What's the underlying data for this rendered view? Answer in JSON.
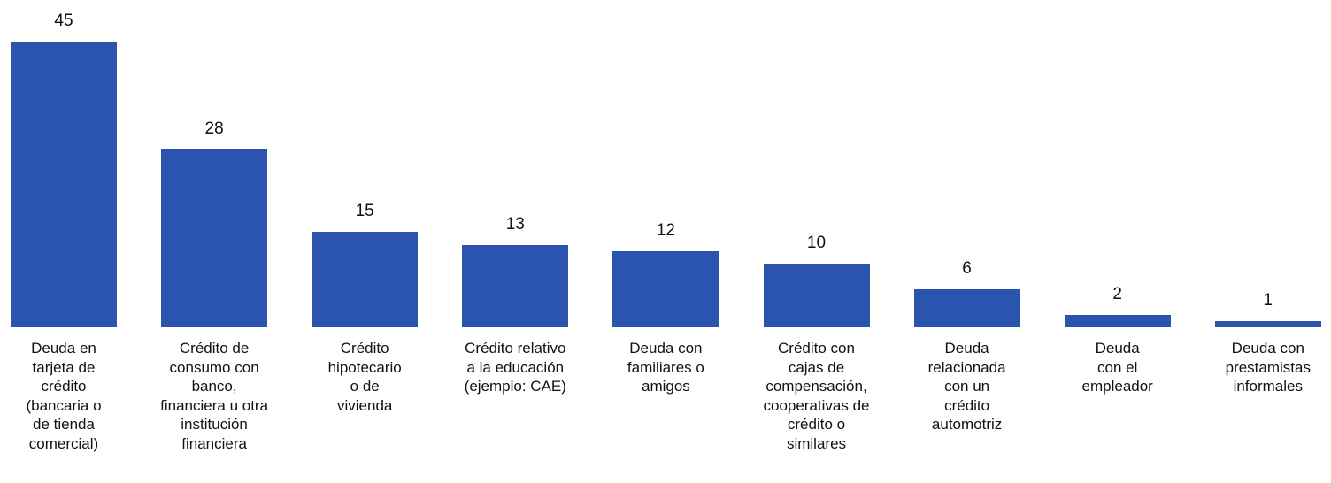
{
  "chart_data": {
    "type": "bar",
    "categories": [
      "Deuda en\ntarjeta de\ncrédito\n(bancaria o\nde tienda\ncomercial)",
      "Crédito de\nconsumo con\nbanco,\nfinanciera u otra\ninstitución\nfinanciera",
      "Crédito\nhipotecario\no de\nvivienda",
      "Crédito relativo\na la educación\n(ejemplo: CAE)",
      "Deuda con\nfamiliares o\namigos",
      "Crédito con\ncajas de\ncompensación,\ncooperativas de\ncrédito o\nsimilares",
      "Deuda\nrelacionada\ncon un\ncrédito\nautomotriz",
      "Deuda\ncon el\nempleador",
      "Deuda con\nprestamistas\ninformales"
    ],
    "values": [
      45,
      28,
      15,
      13,
      12,
      10,
      6,
      2,
      1
    ],
    "color": "#2b54af"
  }
}
